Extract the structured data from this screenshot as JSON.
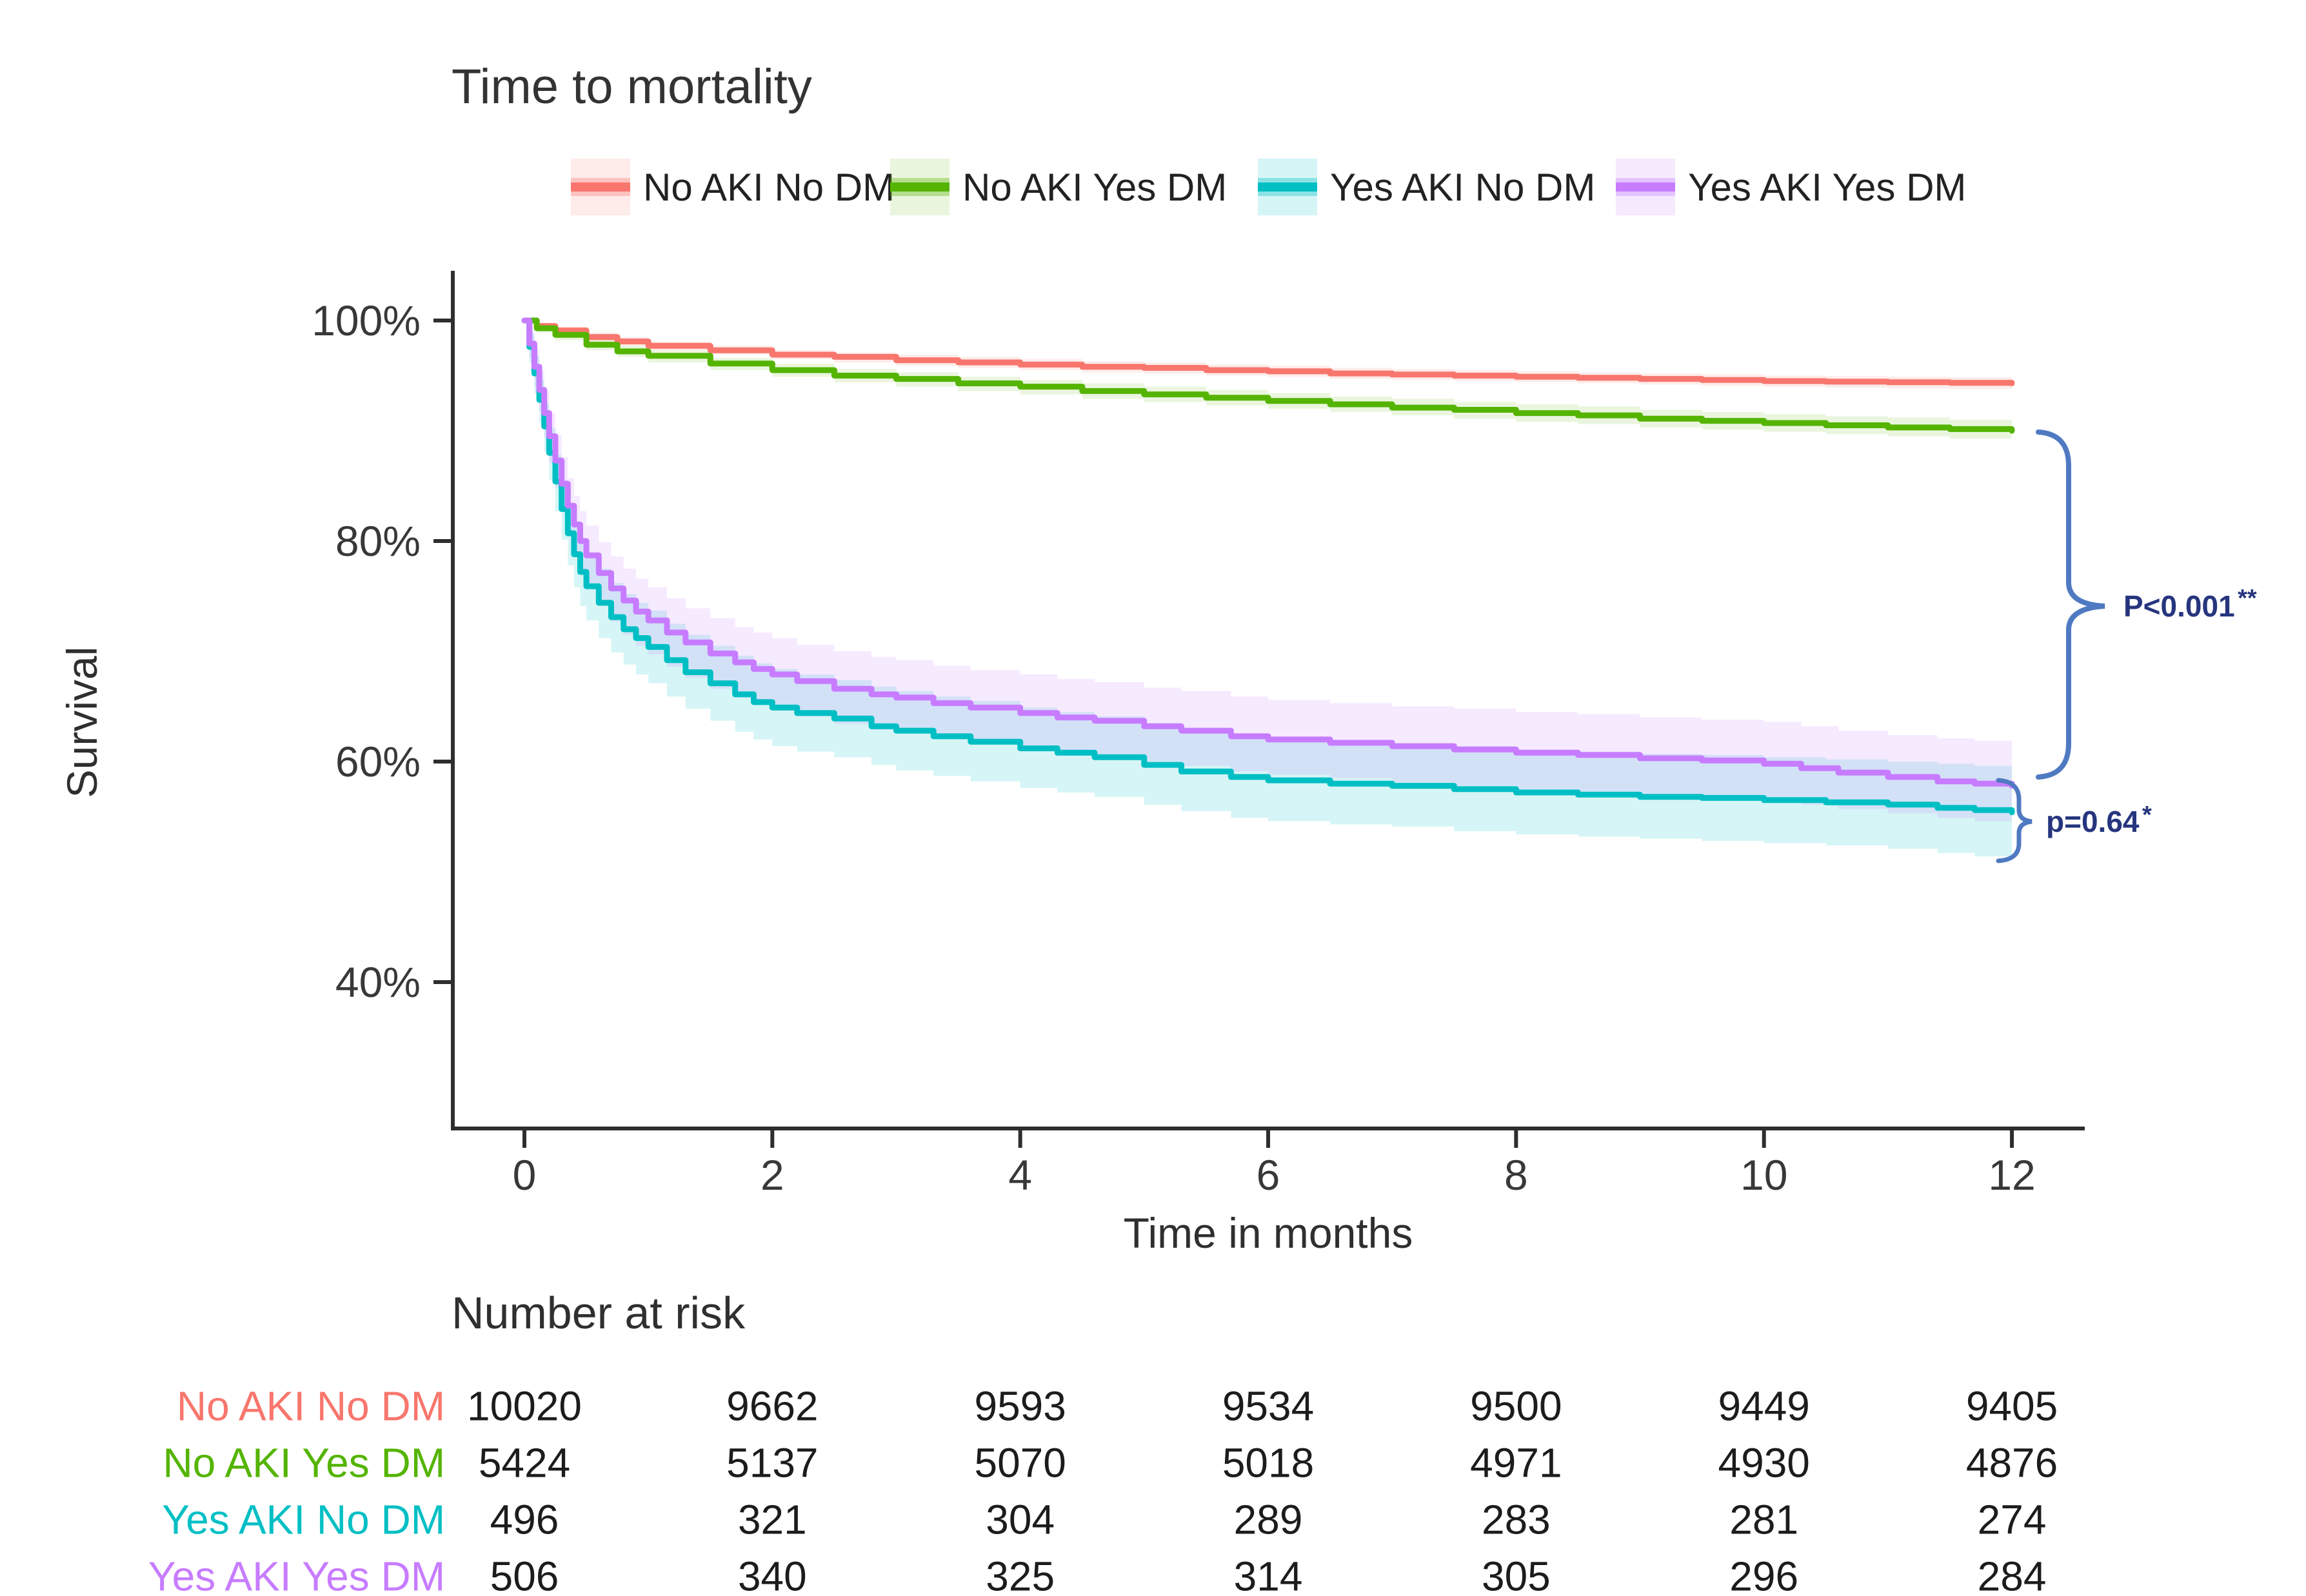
{
  "title": "Time to mortality",
  "axes": {
    "y_label": "Survival",
    "x_label": "Time in months",
    "y_ticks": [
      {
        "label": "100%",
        "value": 100
      },
      {
        "label": "80%",
        "value": 80
      },
      {
        "label": "60%",
        "value": 60
      },
      {
        "label": "40%",
        "value": 40
      }
    ],
    "x_ticks": [
      {
        "label": "0",
        "value": 0
      },
      {
        "label": "2",
        "value": 2
      },
      {
        "label": "4",
        "value": 4
      },
      {
        "label": "6",
        "value": 6
      },
      {
        "label": "8",
        "value": 8
      },
      {
        "label": "10",
        "value": 10
      },
      {
        "label": "12",
        "value": 12
      }
    ]
  },
  "annotations": {
    "p_top": "P<0.001",
    "p_top_sup": "**",
    "p_bottom": "p=0.64",
    "p_bottom_sup": "*",
    "brace_color": "#4f7ac2"
  },
  "risk_table": {
    "title": "Number at risk",
    "groups": [
      {
        "label": "No AKI No DM",
        "color": "#F8766D",
        "counts": [
          10020,
          9662,
          9593,
          9534,
          9500,
          9449,
          9405
        ]
      },
      {
        "label": "No AKI Yes DM",
        "color": "#54B400",
        "counts": [
          5424,
          5137,
          5070,
          5018,
          4971,
          4930,
          4876
        ]
      },
      {
        "label": "Yes AKI No DM",
        "color": "#00BFC4",
        "counts": [
          496,
          321,
          304,
          289,
          283,
          281,
          274
        ]
      },
      {
        "label": "Yes AKI Yes DM",
        "color": "#C77CFF",
        "counts": [
          506,
          340,
          325,
          314,
          305,
          296,
          284
        ]
      }
    ]
  },
  "chart_data": {
    "type": "line",
    "subtype": "kaplan-meier-step",
    "title": "Time to mortality",
    "xlabel": "Time in months",
    "ylabel": "Survival",
    "xlim": [
      0,
      12
    ],
    "ylim_percent": [
      27,
      100
    ],
    "grid": false,
    "legend_position": "top",
    "point_format": [
      "time_months",
      "survival_pct",
      "ci_lower_pct",
      "ci_upper_pct"
    ],
    "series": [
      {
        "name": "No AKI No DM",
        "color": "#F8766D",
        "band_color": "rgba(248,118,109,0.14)",
        "points": [
          [
            0,
            100,
            100,
            100
          ],
          [
            0.1,
            99.5,
            99.2,
            99.8
          ],
          [
            0.25,
            99.1,
            98.7,
            99.4
          ],
          [
            0.5,
            98.5,
            98.1,
            98.9
          ],
          [
            0.75,
            98.1,
            97.7,
            98.5
          ],
          [
            1,
            97.7,
            97.3,
            98.1
          ],
          [
            1.5,
            97.3,
            96.9,
            97.7
          ],
          [
            2,
            96.9,
            96.5,
            97.3
          ],
          [
            2.5,
            96.7,
            96.2,
            97.1
          ],
          [
            3,
            96.4,
            95.9,
            96.9
          ],
          [
            3.5,
            96.2,
            95.7,
            96.7
          ],
          [
            4,
            96.0,
            95.5,
            96.5
          ],
          [
            4.5,
            95.8,
            95.3,
            96.3
          ],
          [
            5,
            95.7,
            95.2,
            96.2
          ],
          [
            5.5,
            95.5,
            95.0,
            96.0
          ],
          [
            6,
            95.4,
            94.9,
            95.9
          ],
          [
            6.5,
            95.2,
            94.7,
            95.7
          ],
          [
            7,
            95.1,
            94.6,
            95.6
          ],
          [
            7.5,
            95.0,
            94.5,
            95.5
          ],
          [
            8,
            94.9,
            94.4,
            95.4
          ],
          [
            8.5,
            94.8,
            94.3,
            95.3
          ],
          [
            9,
            94.7,
            94.2,
            95.2
          ],
          [
            9.5,
            94.6,
            94.1,
            95.1
          ],
          [
            10,
            94.5,
            94.0,
            95.0
          ],
          [
            10.5,
            94.45,
            93.9,
            94.95
          ],
          [
            11,
            94.4,
            93.85,
            94.9
          ],
          [
            11.5,
            94.35,
            93.8,
            94.85
          ],
          [
            12,
            94.3,
            93.7,
            94.8
          ]
        ]
      },
      {
        "name": "No AKI Yes DM",
        "color": "#54B400",
        "band_color": "rgba(92,179,0,0.13)",
        "points": [
          [
            0,
            100,
            100,
            100
          ],
          [
            0.1,
            99.3,
            98.9,
            99.6
          ],
          [
            0.25,
            98.7,
            98.2,
            99.1
          ],
          [
            0.5,
            97.8,
            97.3,
            98.3
          ],
          [
            0.75,
            97.2,
            96.7,
            97.7
          ],
          [
            1,
            96.8,
            96.2,
            97.3
          ],
          [
            1.5,
            96.1,
            95.5,
            96.6
          ],
          [
            2,
            95.5,
            94.9,
            96.1
          ],
          [
            2.5,
            95.0,
            94.4,
            95.6
          ],
          [
            3,
            94.7,
            94.0,
            95.3
          ],
          [
            3.5,
            94.3,
            93.6,
            94.9
          ],
          [
            4,
            94.0,
            93.3,
            94.6
          ],
          [
            4.5,
            93.6,
            92.9,
            94.3
          ],
          [
            5,
            93.3,
            92.6,
            94.0
          ],
          [
            5.5,
            93.0,
            92.3,
            93.7
          ],
          [
            6,
            92.7,
            92.0,
            93.4
          ],
          [
            6.5,
            92.4,
            91.7,
            93.1
          ],
          [
            7,
            92.1,
            91.4,
            92.9
          ],
          [
            7.5,
            91.9,
            91.1,
            92.6
          ],
          [
            8,
            91.6,
            90.8,
            92.4
          ],
          [
            8.5,
            91.4,
            90.6,
            92.2
          ],
          [
            9,
            91.1,
            90.3,
            91.9
          ],
          [
            9.5,
            90.9,
            90.1,
            91.7
          ],
          [
            10,
            90.7,
            89.9,
            91.5
          ],
          [
            10.5,
            90.5,
            89.7,
            91.3
          ],
          [
            11,
            90.3,
            89.5,
            91.2
          ],
          [
            11.5,
            90.15,
            89.3,
            91.0
          ],
          [
            12,
            90.0,
            89.1,
            90.9
          ]
        ]
      },
      {
        "name": "Yes AKI No DM",
        "color": "#00BFC4",
        "band_color": "rgba(0,191,196,0.16)",
        "points": [
          [
            0,
            100,
            100,
            100
          ],
          [
            0.04,
            97.6,
            96.2,
            98.8
          ],
          [
            0.08,
            95.2,
            93.4,
            96.8
          ],
          [
            0.12,
            92.8,
            90.7,
            94.6
          ],
          [
            0.16,
            90.4,
            88.1,
            92.4
          ],
          [
            0.2,
            88.0,
            85.5,
            90.2
          ],
          [
            0.25,
            85.4,
            82.7,
            87.8
          ],
          [
            0.3,
            82.9,
            80.1,
            85.5
          ],
          [
            0.35,
            80.7,
            77.8,
            83.4
          ],
          [
            0.4,
            78.8,
            75.8,
            81.6
          ],
          [
            0.45,
            77.2,
            74.1,
            80.1
          ],
          [
            0.5,
            75.9,
            72.8,
            78.9
          ],
          [
            0.6,
            74.4,
            71.2,
            77.5
          ],
          [
            0.7,
            73.1,
            69.9,
            76.2
          ],
          [
            0.8,
            72.0,
            68.8,
            75.2
          ],
          [
            0.9,
            71.2,
            67.9,
            74.4
          ],
          [
            1,
            70.4,
            67.1,
            73.7
          ],
          [
            1.15,
            69.2,
            65.9,
            72.5
          ],
          [
            1.3,
            68.1,
            64.8,
            71.5
          ],
          [
            1.5,
            67.1,
            63.7,
            70.5
          ],
          [
            1.7,
            66.1,
            62.7,
            69.6
          ],
          [
            1.85,
            65.4,
            62.0,
            68.9
          ],
          [
            2,
            64.9,
            61.4,
            68.4
          ],
          [
            2.2,
            64.4,
            60.9,
            67.9
          ],
          [
            2.5,
            63.9,
            60.4,
            67.4
          ],
          [
            2.8,
            63.2,
            59.7,
            66.8
          ],
          [
            3,
            62.8,
            59.2,
            66.4
          ],
          [
            3.3,
            62.3,
            58.7,
            65.9
          ],
          [
            3.6,
            61.8,
            58.2,
            65.5
          ],
          [
            4,
            61.2,
            57.6,
            64.9
          ],
          [
            4.3,
            60.8,
            57.2,
            64.5
          ],
          [
            4.6,
            60.4,
            56.8,
            64.1
          ],
          [
            5,
            59.7,
            56.1,
            63.5
          ],
          [
            5.3,
            59.1,
            55.5,
            62.9
          ],
          [
            5.7,
            58.6,
            54.9,
            62.4
          ],
          [
            6,
            58.3,
            54.6,
            62.1
          ],
          [
            6.5,
            58.0,
            54.3,
            61.8
          ],
          [
            7,
            57.8,
            54.1,
            61.6
          ],
          [
            7.5,
            57.5,
            53.7,
            61.4
          ],
          [
            8,
            57.2,
            53.4,
            61.1
          ],
          [
            8.5,
            57.0,
            53.2,
            60.9
          ],
          [
            9,
            56.8,
            53.0,
            60.7
          ],
          [
            9.5,
            56.7,
            52.8,
            60.6
          ],
          [
            10,
            56.5,
            52.6,
            60.4
          ],
          [
            10.5,
            56.3,
            52.4,
            60.2
          ],
          [
            11,
            56.1,
            52.1,
            60.0
          ],
          [
            11.4,
            55.8,
            51.7,
            59.8
          ],
          [
            11.7,
            55.6,
            51.4,
            59.6
          ],
          [
            12,
            55.4,
            51.0,
            59.4
          ]
        ]
      },
      {
        "name": "Yes AKI Yes DM",
        "color": "#C77CFF",
        "band_color": "rgba(199,124,255,0.16)",
        "points": [
          [
            0,
            100,
            100,
            100
          ],
          [
            0.04,
            97.9,
            96.6,
            99.0
          ],
          [
            0.08,
            95.8,
            94.0,
            97.4
          ],
          [
            0.12,
            93.7,
            91.7,
            95.5
          ],
          [
            0.16,
            91.6,
            89.4,
            93.6
          ],
          [
            0.2,
            89.5,
            87.1,
            91.6
          ],
          [
            0.25,
            87.3,
            84.8,
            89.6
          ],
          [
            0.3,
            85.2,
            82.6,
            87.6
          ],
          [
            0.35,
            83.2,
            80.5,
            85.7
          ],
          [
            0.4,
            81.5,
            78.7,
            84.1
          ],
          [
            0.45,
            80.0,
            77.1,
            82.7
          ],
          [
            0.5,
            78.7,
            75.8,
            81.4
          ],
          [
            0.6,
            77.1,
            74.1,
            79.9
          ],
          [
            0.7,
            75.7,
            72.7,
            78.6
          ],
          [
            0.8,
            74.6,
            71.5,
            77.5
          ],
          [
            0.9,
            73.6,
            70.5,
            76.6
          ],
          [
            1,
            72.8,
            69.7,
            75.8
          ],
          [
            1.15,
            71.7,
            68.6,
            74.8
          ],
          [
            1.3,
            70.8,
            67.6,
            73.9
          ],
          [
            1.5,
            69.8,
            66.6,
            73.0
          ],
          [
            1.7,
            69.0,
            65.8,
            72.2
          ],
          [
            1.85,
            68.4,
            65.2,
            71.7
          ],
          [
            2,
            67.9,
            64.7,
            71.2
          ],
          [
            2.2,
            67.3,
            64.1,
            70.6
          ],
          [
            2.5,
            66.6,
            63.4,
            70.0
          ],
          [
            2.8,
            66.1,
            62.9,
            69.5
          ],
          [
            3,
            65.8,
            62.6,
            69.2
          ],
          [
            3.3,
            65.3,
            62.1,
            68.7
          ],
          [
            3.6,
            64.9,
            61.7,
            68.3
          ],
          [
            4,
            64.4,
            61.2,
            67.9
          ],
          [
            4.3,
            64.0,
            60.8,
            67.5
          ],
          [
            4.6,
            63.7,
            60.5,
            67.2
          ],
          [
            5,
            63.2,
            60.0,
            66.7
          ],
          [
            5.3,
            62.8,
            59.6,
            66.4
          ],
          [
            5.7,
            62.3,
            59.1,
            65.9
          ],
          [
            6,
            62.0,
            58.8,
            65.6
          ],
          [
            6.5,
            61.7,
            58.5,
            65.3
          ],
          [
            7,
            61.4,
            58.1,
            65.0
          ],
          [
            7.5,
            61.1,
            57.8,
            64.8
          ],
          [
            8,
            60.8,
            57.5,
            64.5
          ],
          [
            8.5,
            60.6,
            57.3,
            64.3
          ],
          [
            9,
            60.3,
            57.0,
            64.0
          ],
          [
            9.5,
            60.1,
            56.8,
            63.8
          ],
          [
            10,
            59.8,
            56.5,
            63.6
          ],
          [
            10.3,
            59.4,
            56.1,
            63.2
          ],
          [
            10.6,
            59.0,
            55.7,
            62.8
          ],
          [
            11,
            58.6,
            55.3,
            62.4
          ],
          [
            11.4,
            58.2,
            54.9,
            62.1
          ],
          [
            11.7,
            58.0,
            54.6,
            61.9
          ],
          [
            12,
            57.8,
            54.4,
            61.7
          ]
        ]
      }
    ]
  }
}
